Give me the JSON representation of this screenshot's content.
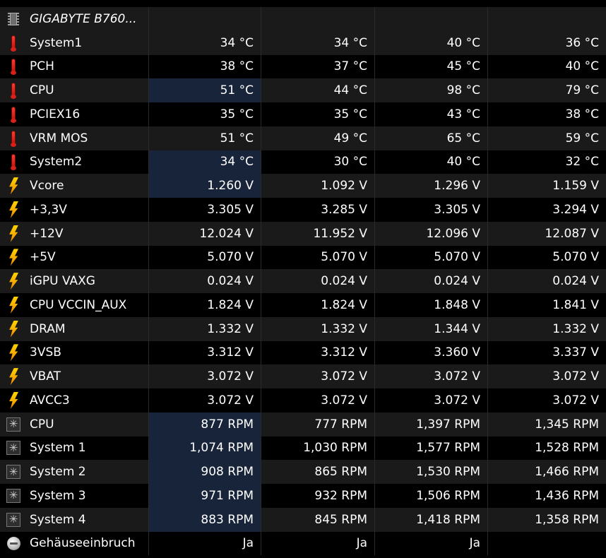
{
  "group": {
    "title": "GIGABYTE B760...",
    "icon": "chip-icon"
  },
  "colors": {
    "background": "#000000",
    "row_alt": "#1a1a1a",
    "highlight": "#17243a",
    "text": "#ffffff"
  },
  "rows": [
    {
      "icon": "thermometer-icon",
      "label": "System1",
      "v": [
        "34 °C",
        "34 °C",
        "40 °C",
        "36 °C"
      ],
      "highlight": false
    },
    {
      "icon": "thermometer-icon",
      "label": "PCH",
      "v": [
        "38 °C",
        "37 °C",
        "45 °C",
        "40 °C"
      ],
      "highlight": false
    },
    {
      "icon": "thermometer-icon",
      "label": "CPU",
      "v": [
        "51 °C",
        "44 °C",
        "98 °C",
        "79 °C"
      ],
      "highlight": true
    },
    {
      "icon": "thermometer-icon",
      "label": "PCIEX16",
      "v": [
        "35 °C",
        "35 °C",
        "43 °C",
        "38 °C"
      ],
      "highlight": false
    },
    {
      "icon": "thermometer-icon",
      "label": "VRM MOS",
      "v": [
        "51 °C",
        "49 °C",
        "65 °C",
        "59 °C"
      ],
      "highlight": false
    },
    {
      "icon": "thermometer-icon",
      "label": "System2",
      "v": [
        "34 °C",
        "30 °C",
        "40 °C",
        "32 °C"
      ],
      "highlight": true
    },
    {
      "icon": "voltage-icon",
      "label": "Vcore",
      "v": [
        "1.260 V",
        "1.092 V",
        "1.296 V",
        "1.159 V"
      ],
      "highlight": true
    },
    {
      "icon": "voltage-icon",
      "label": "+3,3V",
      "v": [
        "3.305 V",
        "3.285 V",
        "3.305 V",
        "3.294 V"
      ],
      "highlight": false
    },
    {
      "icon": "voltage-icon",
      "label": "+12V",
      "v": [
        "12.024 V",
        "11.952 V",
        "12.096 V",
        "12.087 V"
      ],
      "highlight": false
    },
    {
      "icon": "voltage-icon",
      "label": "+5V",
      "v": [
        "5.070 V",
        "5.070 V",
        "5.070 V",
        "5.070 V"
      ],
      "highlight": false
    },
    {
      "icon": "voltage-icon",
      "label": "iGPU VAXG",
      "v": [
        "0.024 V",
        "0.024 V",
        "0.024 V",
        "0.024 V"
      ],
      "highlight": false
    },
    {
      "icon": "voltage-icon",
      "label": "CPU VCCIN_AUX",
      "v": [
        "1.824 V",
        "1.824 V",
        "1.848 V",
        "1.841 V"
      ],
      "highlight": false
    },
    {
      "icon": "voltage-icon",
      "label": "DRAM",
      "v": [
        "1.332 V",
        "1.332 V",
        "1.344 V",
        "1.332 V"
      ],
      "highlight": false
    },
    {
      "icon": "voltage-icon",
      "label": "3VSB",
      "v": [
        "3.312 V",
        "3.312 V",
        "3.360 V",
        "3.337 V"
      ],
      "highlight": false
    },
    {
      "icon": "voltage-icon",
      "label": "VBAT",
      "v": [
        "3.072 V",
        "3.072 V",
        "3.072 V",
        "3.072 V"
      ],
      "highlight": false
    },
    {
      "icon": "voltage-icon",
      "label": "AVCC3",
      "v": [
        "3.072 V",
        "3.072 V",
        "3.072 V",
        "3.072 V"
      ],
      "highlight": false
    },
    {
      "icon": "fan-icon",
      "label": "CPU",
      "v": [
        "877 RPM",
        "777 RPM",
        "1,397 RPM",
        "1,345 RPM"
      ],
      "highlight": true
    },
    {
      "icon": "fan-icon",
      "label": "System 1",
      "v": [
        "1,074 RPM",
        "1,030 RPM",
        "1,577 RPM",
        "1,528 RPM"
      ],
      "highlight": true
    },
    {
      "icon": "fan-icon",
      "label": "System 2",
      "v": [
        "908 RPM",
        "865 RPM",
        "1,530 RPM",
        "1,466 RPM"
      ],
      "highlight": true
    },
    {
      "icon": "fan-icon",
      "label": "System 3",
      "v": [
        "971 RPM",
        "932 RPM",
        "1,506 RPM",
        "1,436 RPM"
      ],
      "highlight": true
    },
    {
      "icon": "fan-icon",
      "label": "System 4",
      "v": [
        "883 RPM",
        "845 RPM",
        "1,418 RPM",
        "1,358 RPM"
      ],
      "highlight": true
    },
    {
      "icon": "intrusion-icon",
      "label": "Gehäuseeinbruch",
      "v": [
        "Ja",
        "Ja",
        "Ja",
        ""
      ],
      "highlight": false
    }
  ]
}
